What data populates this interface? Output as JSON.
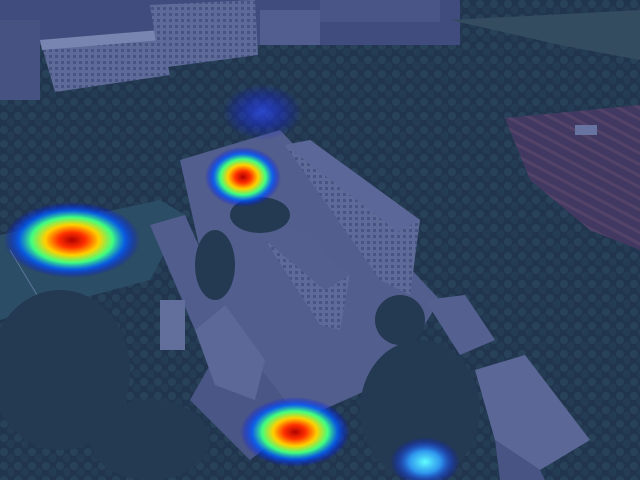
{
  "image": {
    "kind": "aerial-photo-with-heatmap-overlay",
    "overlay_tint": "#2a3a8c",
    "palette": {
      "forest": "#1f3a2c",
      "forest_light": "#2f5a3a",
      "orchard": "#5a3f4a",
      "building_roof": "#5d6a86",
      "building_wall": "#8d97ad",
      "courtyard": "#6a7590",
      "field": "#2d5a4e"
    },
    "heatmap_colormap": [
      "#0000ff",
      "#00ffff",
      "#ffff00",
      "#ff0000"
    ],
    "hotspots": [
      {
        "id": "hotspot-left-field",
        "intensity": 1.0
      },
      {
        "id": "hotspot-top-court",
        "intensity": 0.9
      },
      {
        "id": "hotspot-bottom-court",
        "intensity": 0.95
      },
      {
        "id": "hotspot-bottom-right",
        "intensity": 0.5
      },
      {
        "id": "hotspot-top-faint",
        "intensity": 0.25
      }
    ]
  }
}
